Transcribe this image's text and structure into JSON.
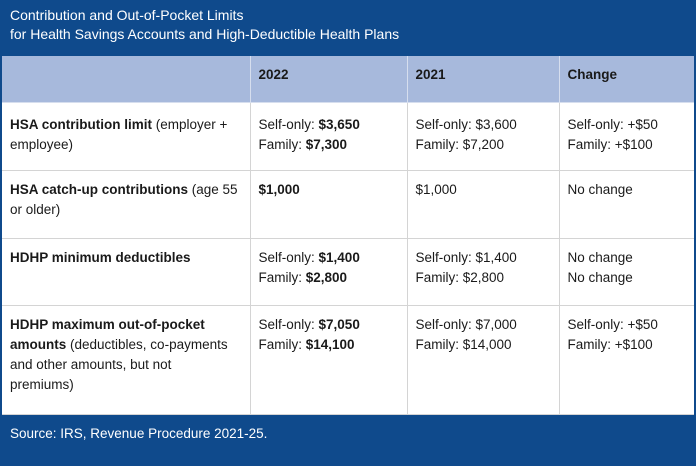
{
  "title": {
    "line1": "Contribution and Out-of-Pocket Limits",
    "line2": "for Health Savings Accounts and High-Deductible Health Plans"
  },
  "columns": [
    "",
    "2022",
    "2021",
    "Change"
  ],
  "rows": [
    {
      "label_bold": "HSA contribution limit",
      "label_rest_line1": " (employer +",
      "label_rest_line2": "employee)",
      "y2022": [
        {
          "prefix": "Self-only: ",
          "value": "$3,650"
        },
        {
          "prefix": "Family: ",
          "value": "$7,300"
        }
      ],
      "y2021": [
        "Self-only: $3,600",
        "Family: $7,200"
      ],
      "change": [
        "Self-only: +$50",
        "Family: +$100"
      ]
    },
    {
      "label_bold": "HSA catch-up contributions",
      "label_rest_line1": " (age 55",
      "label_rest_line2": "or older)",
      "y2022": [
        {
          "prefix": "",
          "value": "$1,000"
        }
      ],
      "y2021": [
        "$1,000"
      ],
      "change": [
        "No change"
      ]
    },
    {
      "label_bold": "HDHP minimum deductibles",
      "y2022": [
        {
          "prefix": "Self-only: ",
          "value": "$1,400"
        },
        {
          "prefix": "Family: ",
          "value": "$2,800"
        }
      ],
      "y2021": [
        "Self-only: $1,400",
        "Family: $2,800"
      ],
      "change": [
        "No change",
        "No change"
      ]
    },
    {
      "label_bold_line1": "HDHP maximum out-of-pocket",
      "label_bold_line2": "amounts",
      "label_rest_line2": " (deductibles, co-payments",
      "label_rest_line3": "and other amounts, but not",
      "label_rest_line4": "premiums)",
      "y2022": [
        {
          "prefix": "Self-only: ",
          "value": "$7,050"
        },
        {
          "prefix": "Family: ",
          "value": "$14,100"
        }
      ],
      "y2021": [
        "Self-only: $7,000",
        "Family: $14,000"
      ],
      "change": [
        "Self-only: +$50",
        "Family: +$100"
      ]
    }
  ],
  "source": "Source: IRS, Revenue Procedure 2021-25.",
  "colors": {
    "band": "#0f4a8c",
    "header_row": "#a7b9dc",
    "text": "#1a1a1a"
  }
}
